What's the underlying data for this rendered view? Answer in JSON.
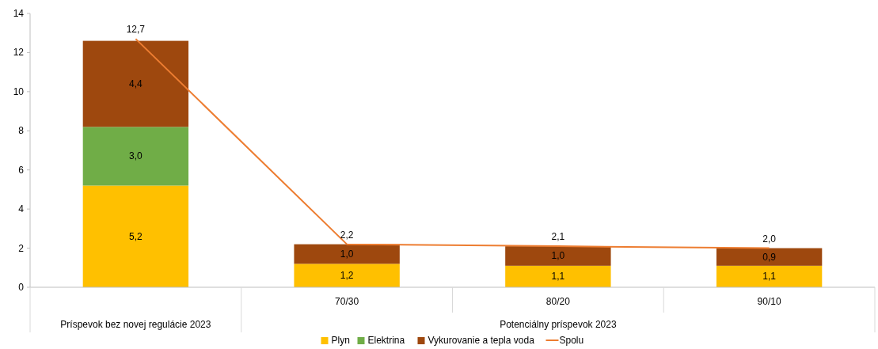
{
  "chart_data": {
    "type": "bar",
    "stacked": true,
    "categories": [
      null,
      "70/30",
      "80/20",
      "90/10"
    ],
    "annotations": [
      "Príspevok bez novej regulácie 2023",
      "Potenciálny príspevok 2023"
    ],
    "series": [
      {
        "name": "Plyn",
        "color": "#ffc000",
        "values": [
          5.2,
          1.2,
          1.1,
          1.1
        ],
        "value_labels": [
          "5,2",
          "1,2",
          "1,1",
          "1,1"
        ]
      },
      {
        "name": "Elektrina",
        "color": "#70ad47",
        "values": [
          3.0,
          null,
          null,
          null
        ],
        "value_labels": [
          "3,0",
          null,
          null,
          null
        ]
      },
      {
        "name": "Vykurovanie a tepla voda",
        "color": "#9e480e",
        "values": [
          4.4,
          1.0,
          1.0,
          0.9
        ],
        "value_labels": [
          "4,4",
          "1,0",
          "1,0",
          "0,9"
        ]
      },
      {
        "name": "Spolu",
        "type": "line",
        "color": "#ed7d31",
        "values": [
          12.7,
          2.2,
          2.1,
          2.0
        ],
        "value_labels": [
          "12,7",
          "2,2",
          "2,1",
          "2,0"
        ]
      }
    ],
    "ylim": [
      0,
      14
    ],
    "yticks": [
      0,
      2,
      4,
      6,
      8,
      10,
      12,
      14
    ],
    "legend": "bottom"
  }
}
